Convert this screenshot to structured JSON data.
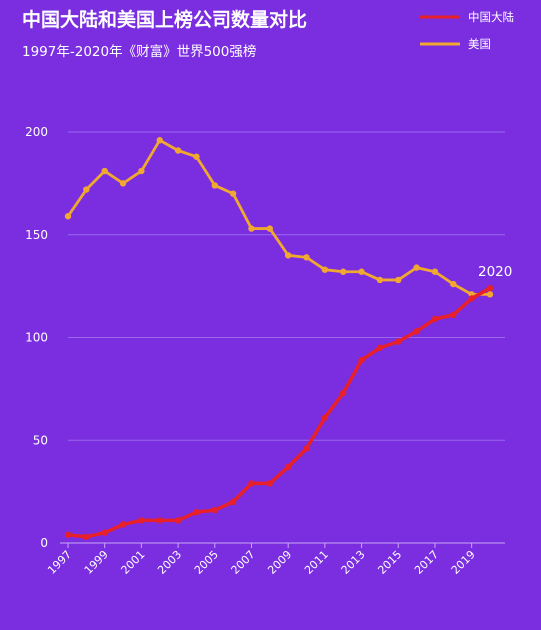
{
  "chart_data": {
    "type": "line",
    "title": "中国大陆和美国上榜公司数量对比",
    "subtitle": "1997年-2020年《财富》世界500强榜",
    "background_color": "#7a2ee0",
    "ylim": [
      0,
      200
    ],
    "yticks": [
      0,
      50,
      100,
      150,
      200
    ],
    "xticks": [
      "1997",
      "1999",
      "2001",
      "2003",
      "2005",
      "2007",
      "2009",
      "2011",
      "2013",
      "2015",
      "2017",
      "2019"
    ],
    "x": [
      1997,
      1998,
      1999,
      2000,
      2001,
      2002,
      2003,
      2004,
      2005,
      2006,
      2007,
      2008,
      2009,
      2010,
      2011,
      2012,
      2013,
      2014,
      2015,
      2016,
      2017,
      2018,
      2019,
      2020
    ],
    "grid": true,
    "legend_position": "top-right",
    "annotation": "2020",
    "series": [
      {
        "name": "中国大陆",
        "color": "#e8202a",
        "values": [
          4,
          3,
          5,
          9,
          11,
          11,
          11,
          15,
          16,
          20,
          29,
          29,
          37,
          46,
          61,
          73,
          89,
          95,
          98,
          103,
          109,
          111,
          119,
          124
        ]
      },
      {
        "name": "美国",
        "color": "#f0a830",
        "values": [
          159,
          172,
          181,
          175,
          181,
          196,
          191,
          188,
          174,
          170,
          153,
          153,
          140,
          139,
          133,
          132,
          132,
          128,
          128,
          134,
          132,
          126,
          121,
          121
        ]
      }
    ]
  }
}
